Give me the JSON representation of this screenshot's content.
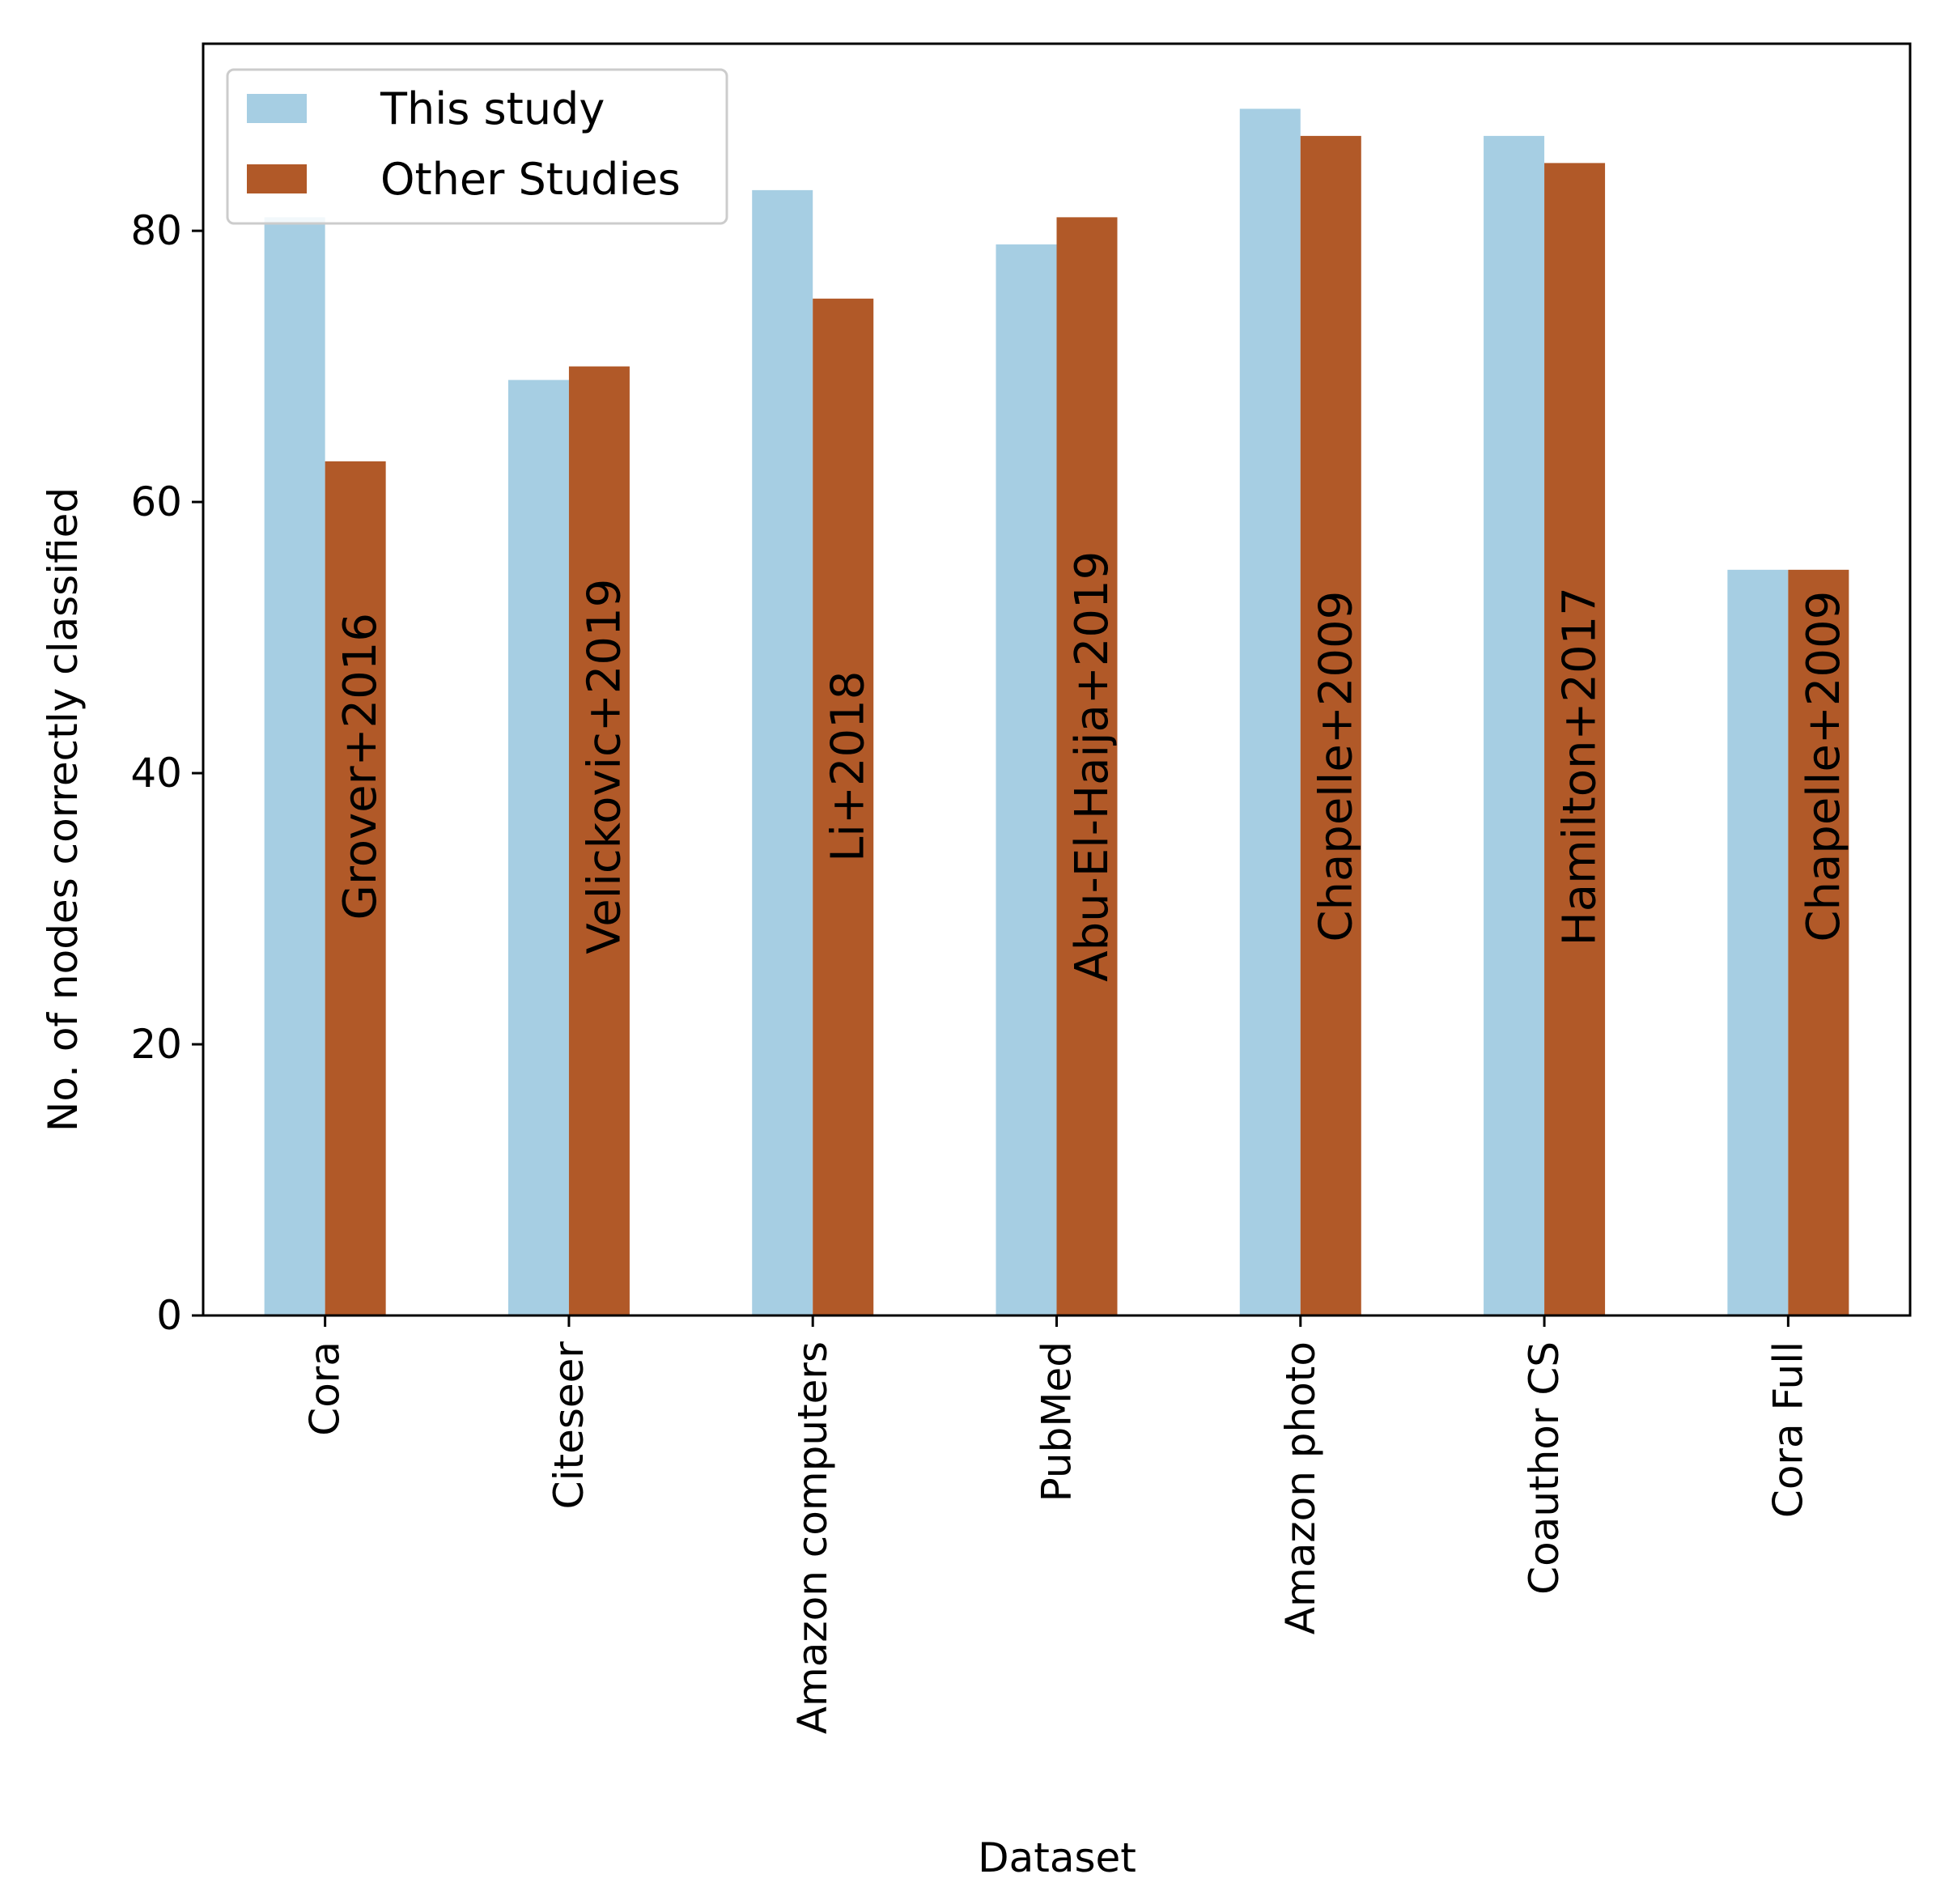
{
  "chart_data": {
    "type": "bar",
    "title": "",
    "xlabel": "Dataset",
    "ylabel": "No. of nodes correctly classified",
    "ylim": [
      0,
      93.8
    ],
    "yticks": [
      0,
      20,
      40,
      60,
      80
    ],
    "grid": false,
    "legend_position": "top-left",
    "categories": [
      "Cora",
      "Citeseer",
      "Amazon computers",
      "PubMed",
      "Amazon photo",
      "Coauthor CS",
      "Cora Full"
    ],
    "series": [
      {
        "name": "This study",
        "color": "#a6cee3",
        "values": [
          81,
          69,
          83,
          79,
          89,
          87,
          55
        ]
      },
      {
        "name": "Other Studies",
        "color": "#b15928",
        "values": [
          63,
          70,
          75,
          81,
          87,
          85,
          55
        ]
      }
    ],
    "annotations": [
      "Grover+2016",
      "Velickovic+2019",
      "Li+2018",
      "Abu-El-Haija+2019",
      "Chapelle+2009",
      "Hamilton+2017",
      "Chapelle+2009"
    ]
  }
}
